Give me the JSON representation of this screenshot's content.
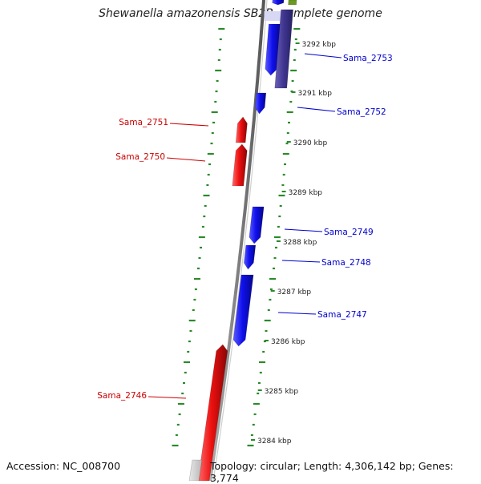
{
  "title": "Shewanella amazonensis SB2B, complete genome",
  "footer": {
    "accession": "Accession: NC_008700",
    "topology": "Topology: circular; Length: 4,306,142 bp; Genes: 3,774"
  },
  "colors": {
    "forward_gene": "#1010ee",
    "reverse_gene": "#ee1010",
    "forward_label": "#1a1aa0",
    "reverse_label": "#cc1010",
    "tick": "#2a8a2a",
    "backbone": "#888888",
    "selected_gene": "#4a3f9a",
    "rna_gene": "#6a9a20",
    "pseudo_gene": "#c8c8c8",
    "highlight": "#d8d8f4"
  },
  "scale": {
    "ticks": [
      "3292 kbp",
      "3291 kbp",
      "3290 kbp",
      "3289 kbp",
      "3288 kbp",
      "3287 kbp",
      "3286 kbp",
      "3285 kbp",
      "3284 kbp"
    ]
  },
  "labels": [
    {
      "text": "Sama_2753",
      "strand": "forward"
    },
    {
      "text": "Sama_2752",
      "strand": "forward"
    },
    {
      "text": "Sama_2751",
      "strand": "reverse"
    },
    {
      "text": "Sama_2750",
      "strand": "reverse"
    },
    {
      "text": "Sama_2749",
      "strand": "forward"
    },
    {
      "text": "Sama_2748",
      "strand": "forward"
    },
    {
      "text": "Sama_2747",
      "strand": "forward"
    },
    {
      "text": "Sama_2746",
      "strand": "reverse"
    }
  ]
}
